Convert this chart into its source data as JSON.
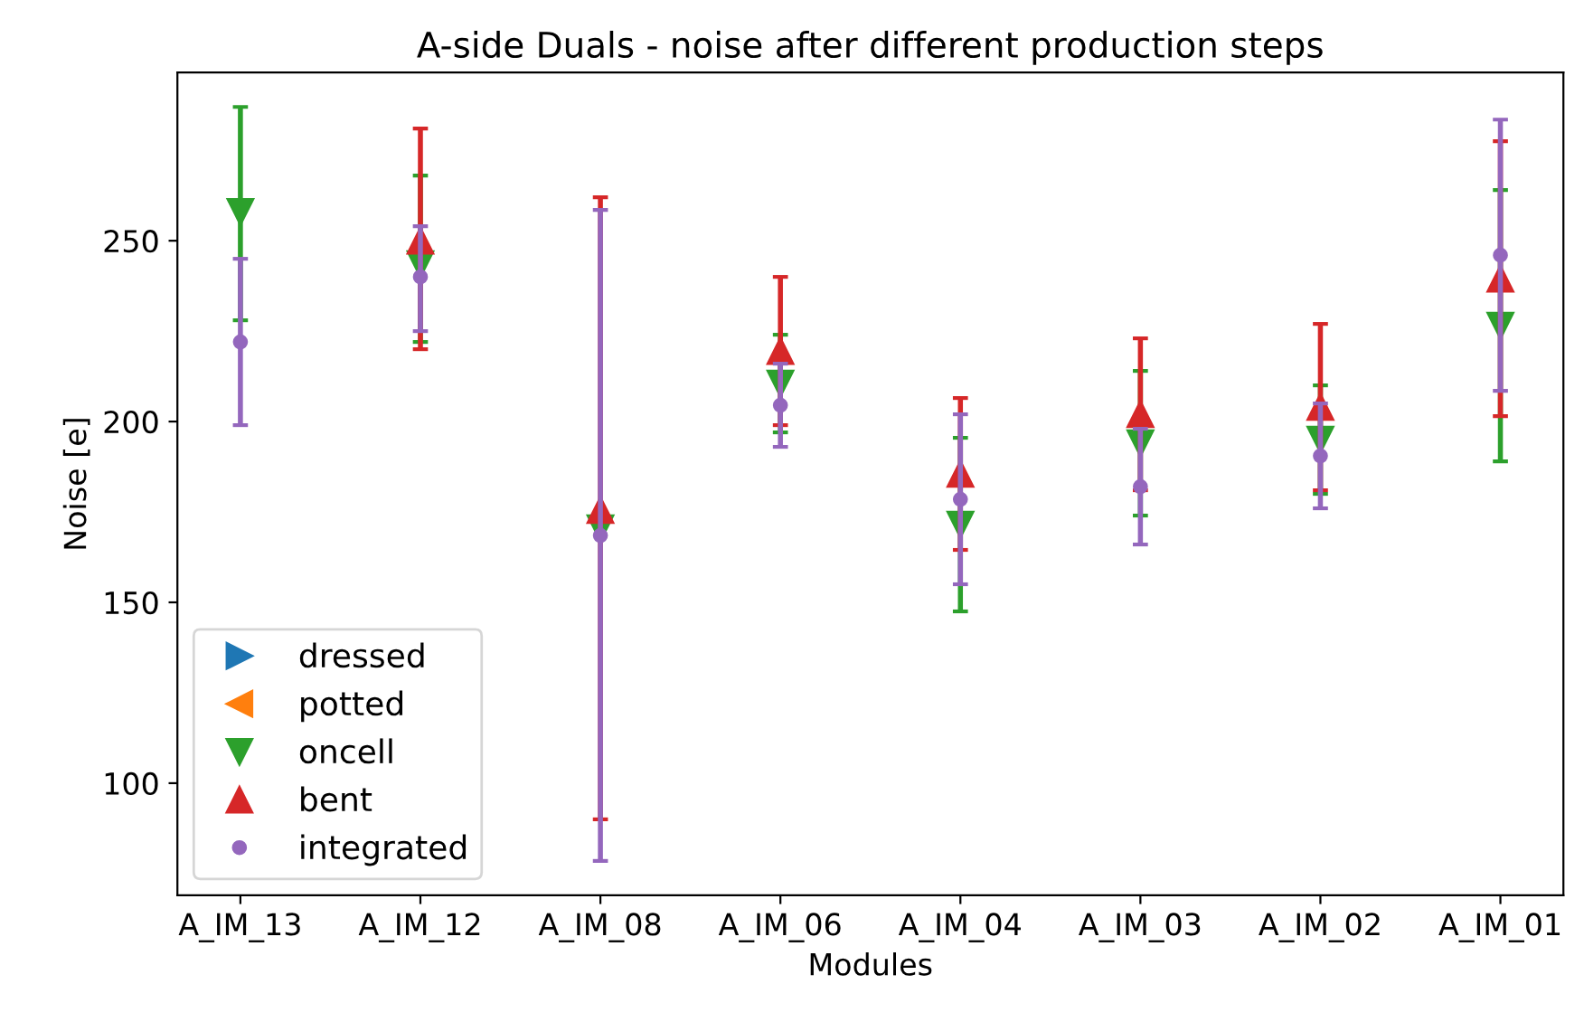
{
  "chart_data": {
    "type": "scatter",
    "title": "A-side Duals - noise after different production steps",
    "xlabel": "Modules",
    "ylabel": "Noise [e]",
    "categories": [
      "A_IM_13",
      "A_IM_12",
      "A_IM_08",
      "A_IM_06",
      "A_IM_04",
      "A_IM_03",
      "A_IM_02",
      "A_IM_01"
    ],
    "series": [
      {
        "name": "dressed",
        "color": "#1f77b4",
        "marker": "triangle-right",
        "values": [
          null,
          null,
          null,
          null,
          null,
          null,
          null,
          null
        ]
      },
      {
        "name": "potted",
        "color": "#ff7f0e",
        "marker": "triangle-left",
        "values": [
          null,
          null,
          null,
          null,
          null,
          null,
          null,
          null
        ]
      },
      {
        "name": "oncell",
        "color": "#2ca02c",
        "marker": "triangle-down",
        "values": [
          258,
          243.5,
          170.5,
          210.5,
          171.5,
          194,
          195,
          226.5
        ],
        "errors": [
          [
            228,
            287
          ],
          [
            222,
            268
          ],
          null,
          13.5,
          24,
          20,
          15,
          37.5
        ]
      },
      {
        "name": "bent",
        "color": "#d62728",
        "marker": "triangle",
        "values": [
          null,
          250,
          175.5,
          219.5,
          185.5,
          202,
          204,
          239.5
        ],
        "errors": [
          null,
          [
            220,
            281
          ],
          [
            90,
            262
          ],
          20.5,
          21,
          21,
          23,
          38
        ]
      },
      {
        "name": "integrated",
        "color": "#9467bd",
        "marker": "circle",
        "values": [
          222,
          240,
          168.5,
          204.5,
          178.5,
          182,
          190.5,
          246
        ],
        "errors": [
          23,
          [
            225,
            254
          ],
          90,
          11.5,
          23.5,
          16,
          14.5,
          37.5
        ]
      }
    ],
    "ylim": [
      69,
      296.5
    ],
    "yticks": [
      100,
      150,
      200,
      250
    ],
    "grid": false,
    "legend": "bottom left"
  }
}
